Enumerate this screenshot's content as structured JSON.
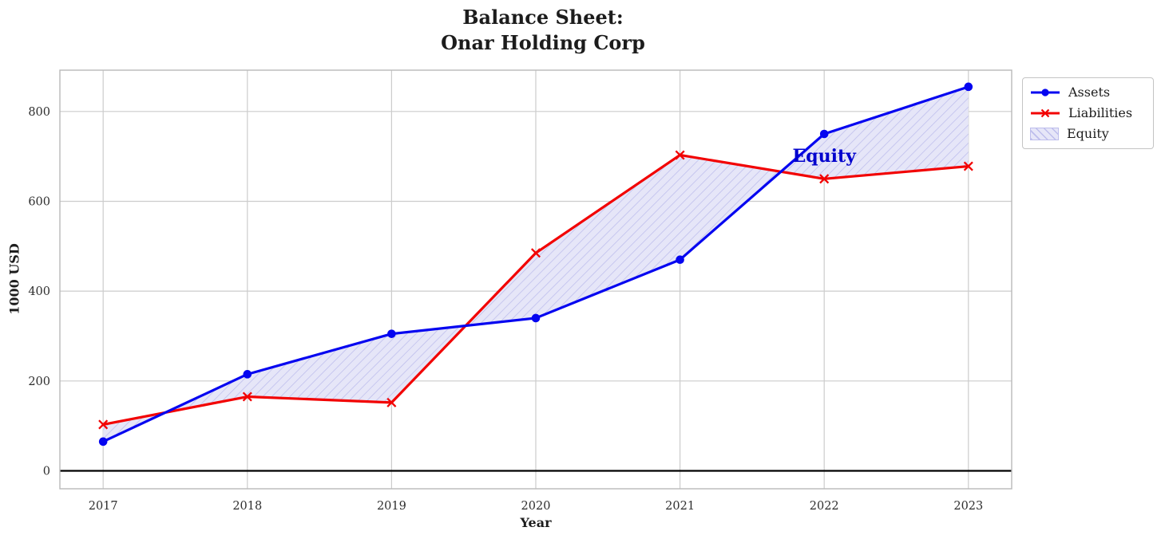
{
  "chart_data": {
    "type": "line",
    "title": "Balance Sheet:\nOnar Holding Corp",
    "title_lines": [
      "Balance Sheet:",
      "Onar Holding Corp"
    ],
    "xlabel": "Year",
    "ylabel": "1000 USD",
    "x": [
      2017,
      2018,
      2019,
      2020,
      2021,
      2022,
      2023
    ],
    "series": [
      {
        "name": "Assets",
        "values": [
          65,
          215,
          305,
          340,
          470,
          750,
          855
        ],
        "color": "#0505f0",
        "marker": "circle"
      },
      {
        "name": "Liabilities",
        "values": [
          103,
          165,
          152,
          485,
          703,
          650,
          678
        ],
        "color": "#f20202",
        "marker": "x"
      }
    ],
    "fill_between": {
      "name": "Equity",
      "upper": "Assets",
      "lower": "Liabilities",
      "facecolor": "#e6e6f8",
      "hatch_color": "#bdbdec"
    },
    "annotation": {
      "text": "Equity",
      "x": 2022,
      "y": 700,
      "color": "#0000cd"
    },
    "yticks": [
      0,
      200,
      400,
      600,
      800
    ],
    "ylim": [
      -40,
      892
    ],
    "grid": true,
    "grid_color": "#cccccc",
    "spine_color": "#b9b9b9",
    "tick_label_color": "#2e2e2e",
    "zero_line": true,
    "zero_line_color": "#000000",
    "legend_position": "outside-upper-right"
  }
}
